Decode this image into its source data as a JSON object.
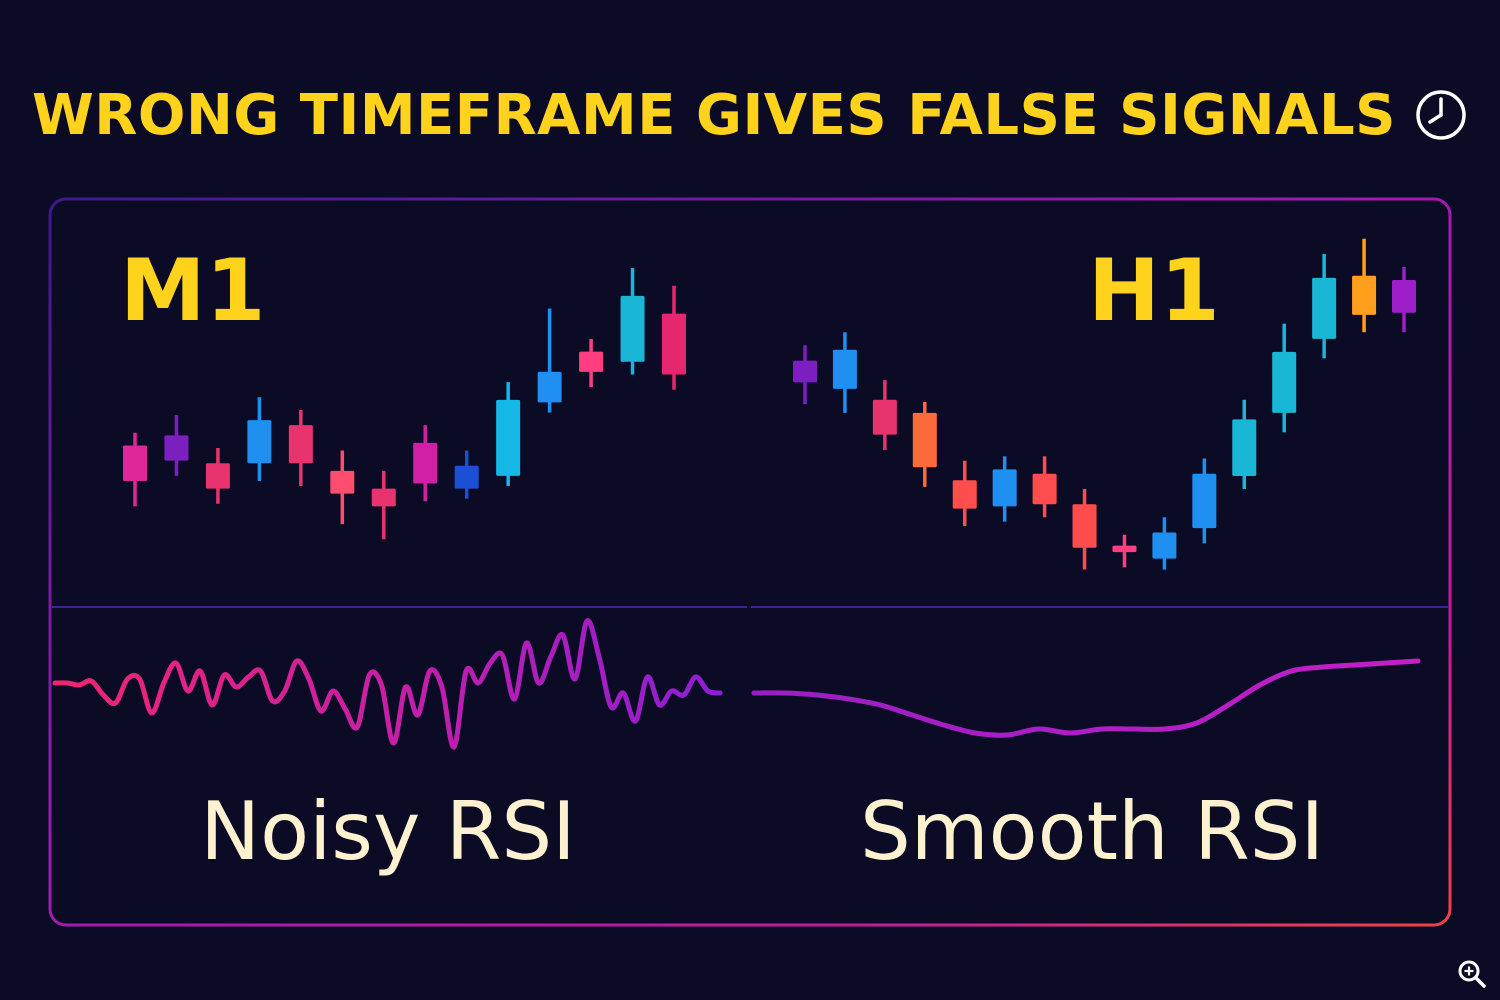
{
  "title": "WRONG TIMEFRAME GIVES FALSE SIGNALS",
  "icons": {
    "title_icon": "clock-icon",
    "corner_icon": "zoom-icon"
  },
  "colors": {
    "background": "#0c0b26",
    "title": "#ffd21c",
    "panel_label": "#ffd21c",
    "rsi_label": "#fdf1cf",
    "frame_gradient": [
      "#4a1d8f",
      "#a21caf",
      "#f97316",
      "#ef4444"
    ]
  },
  "chart_data": [
    {
      "type": "candlestick",
      "panel": "left",
      "timeframe_label": "M1",
      "candles": [
        {
          "open": 5.7,
          "close": 4.3,
          "high": 6.2,
          "low": 3.3,
          "color": "#e0279a"
        },
        {
          "open": 6.1,
          "close": 5.1,
          "high": 6.9,
          "low": 4.5,
          "color": "#7c1fbf"
        },
        {
          "open": 5.0,
          "close": 4.0,
          "high": 5.6,
          "low": 3.4,
          "color": "#e8336e"
        },
        {
          "open": 5.0,
          "close": 6.7,
          "high": 7.6,
          "low": 4.3,
          "color": "#1f8ff0"
        },
        {
          "open": 6.5,
          "close": 5.0,
          "high": 7.1,
          "low": 4.1,
          "color": "#e8336e"
        },
        {
          "open": 4.7,
          "close": 3.8,
          "high": 5.5,
          "low": 2.6,
          "color": "#ff4d6d"
        },
        {
          "open": 4.0,
          "close": 3.3,
          "high": 4.7,
          "low": 2.0,
          "color": "#e8336e"
        },
        {
          "open": 5.8,
          "close": 4.2,
          "high": 6.5,
          "low": 3.5,
          "color": "#d11fa6"
        },
        {
          "open": 4.0,
          "close": 4.9,
          "high": 5.5,
          "low": 3.6,
          "color": "#1a4fd6"
        },
        {
          "open": 4.5,
          "close": 7.5,
          "high": 8.2,
          "low": 4.1,
          "color": "#14b8e6"
        },
        {
          "open": 7.4,
          "close": 8.6,
          "high": 11.1,
          "low": 7.0,
          "color": "#1f8ff0"
        },
        {
          "open": 8.6,
          "close": 9.4,
          "high": 9.9,
          "low": 8.0,
          "color": "#ff3d7f"
        },
        {
          "open": 9.0,
          "close": 11.6,
          "high": 12.7,
          "low": 8.5,
          "color": "#19b6d6"
        },
        {
          "open": 10.9,
          "close": 8.5,
          "high": 12.0,
          "low": 7.9,
          "color": "#e6276f"
        }
      ]
    },
    {
      "type": "candlestick",
      "panel": "right",
      "timeframe_label": "H1",
      "candles": [
        {
          "open": 8.0,
          "close": 9.0,
          "high": 9.7,
          "low": 7.0,
          "color": "#7c1fbf"
        },
        {
          "open": 7.7,
          "close": 9.5,
          "high": 10.3,
          "low": 6.6,
          "color": "#1f8ff0"
        },
        {
          "open": 7.2,
          "close": 5.6,
          "high": 8.1,
          "low": 4.9,
          "color": "#e8336e"
        },
        {
          "open": 6.6,
          "close": 4.1,
          "high": 7.1,
          "low": 3.2,
          "color": "#ff6a3d"
        },
        {
          "open": 3.5,
          "close": 2.2,
          "high": 4.4,
          "low": 1.4,
          "color": "#ff4d4d"
        },
        {
          "open": 2.3,
          "close": 4.0,
          "high": 4.6,
          "low": 1.6,
          "color": "#1f8ff0"
        },
        {
          "open": 3.8,
          "close": 2.4,
          "high": 4.6,
          "low": 1.8,
          "color": "#ff4d4d"
        },
        {
          "open": 2.4,
          "close": 0.4,
          "high": 3.1,
          "low": -0.6,
          "color": "#ff4d4d"
        },
        {
          "open": 0.5,
          "close": 0.2,
          "high": 1.0,
          "low": -0.5,
          "color": "#ff3d7f"
        },
        {
          "open": -0.1,
          "close": 1.1,
          "high": 1.8,
          "low": -0.6,
          "color": "#1f8ff0"
        },
        {
          "open": 1.3,
          "close": 3.8,
          "high": 4.5,
          "low": 0.6,
          "color": "#1f8ff0"
        },
        {
          "open": 3.7,
          "close": 6.3,
          "high": 7.2,
          "low": 3.1,
          "color": "#19b6d6"
        },
        {
          "open": 6.6,
          "close": 9.4,
          "high": 10.7,
          "low": 5.7,
          "color": "#19b6d6"
        },
        {
          "open": 10.0,
          "close": 12.8,
          "high": 13.9,
          "low": 9.1,
          "color": "#19b6d6"
        },
        {
          "open": 12.9,
          "close": 11.1,
          "high": 14.6,
          "low": 10.3,
          "color": "#ff9f1c"
        },
        {
          "open": 11.2,
          "close": 12.7,
          "high": 13.3,
          "low": 10.3,
          "color": "#9d1fc9"
        }
      ]
    },
    {
      "type": "line",
      "panel": "left",
      "label": "Noisy RSI",
      "values": [
        56,
        56,
        55,
        57,
        50,
        46,
        58,
        58,
        41,
        56,
        66,
        52,
        62,
        45,
        60,
        54,
        59,
        62,
        47,
        52,
        67,
        58,
        42,
        52,
        43,
        34,
        60,
        55,
        26,
        54,
        40,
        62,
        54,
        24,
        62,
        56,
        66,
        70,
        48,
        76,
        56,
        69,
        80,
        58,
        87,
        69,
        44,
        51,
        37,
        59,
        45,
        52,
        50,
        59,
        52,
        51
      ]
    },
    {
      "type": "line",
      "panel": "right",
      "label": "Smooth RSI",
      "values": [
        51,
        51,
        50,
        48,
        45,
        40,
        35,
        31,
        30,
        33,
        31,
        33,
        33,
        33,
        36,
        45,
        55,
        62,
        64,
        65,
        66,
        67
      ]
    }
  ],
  "labels": {
    "left_timeframe": "M1",
    "right_timeframe": "H1",
    "left_rsi": "Noisy RSI",
    "right_rsi": "Smooth RSI"
  }
}
